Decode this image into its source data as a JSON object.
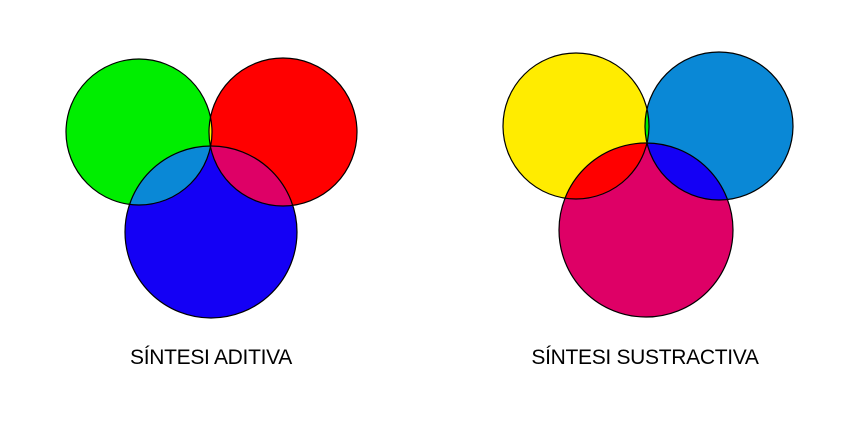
{
  "additive": {
    "caption": "SÍNTESI ADITIVA",
    "colors": {
      "green": "#00EE00",
      "red": "#FF0000",
      "blue": "#1400F5",
      "green_red_overlap": "#FFEE00",
      "green_blue_overlap": "#0A88D6",
      "red_blue_overlap": "#DE0066",
      "center_overlap": "#FFFFFF"
    }
  },
  "subtractive": {
    "caption": "SÍNTESI SUSTRACTIVA",
    "colors": {
      "yellow": "#FFEC00",
      "cyan": "#0A88D6",
      "magenta": "#DE0066",
      "yellow_cyan_overlap": "#00EE00",
      "yellow_magenta_overlap": "#FF0000",
      "cyan_magenta_overlap": "#1400F5",
      "center_overlap": "#000000"
    }
  }
}
